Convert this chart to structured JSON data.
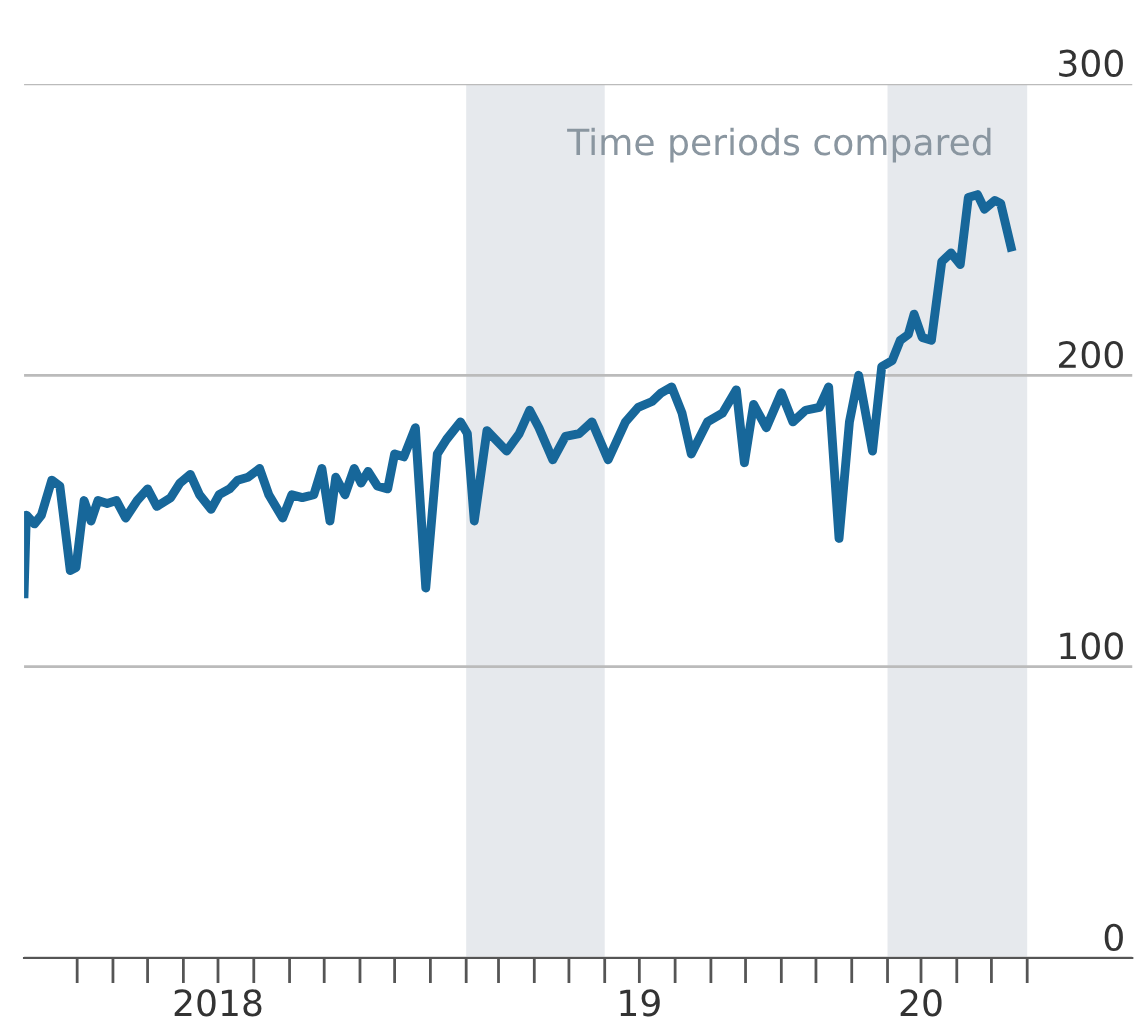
{
  "chart_data": {
    "type": "line",
    "x": [
      "2018-01-14",
      "2018-01-16",
      "2018-01-23",
      "2018-01-29",
      "2018-02-07",
      "2018-02-14",
      "2018-02-23",
      "2018-02-28",
      "2018-03-07",
      "2018-03-13",
      "2018-03-19",
      "2018-03-27",
      "2018-04-04",
      "2018-04-12",
      "2018-04-22",
      "2018-05-01",
      "2018-05-09",
      "2018-05-21",
      "2018-05-29",
      "2018-06-07",
      "2018-06-15",
      "2018-06-25",
      "2018-07-02",
      "2018-07-11",
      "2018-07-18",
      "2018-07-27",
      "2018-08-06",
      "2018-08-14",
      "2018-08-26",
      "2018-09-03",
      "2018-09-12",
      "2018-09-22",
      "2018-09-29",
      "2018-10-06",
      "2018-10-11",
      "2018-10-19",
      "2018-10-27",
      "2018-11-02",
      "2018-11-08",
      "2018-11-16",
      "2018-11-25",
      "2018-12-01",
      "2018-12-09",
      "2018-12-19",
      "2018-12-28",
      "2019-01-07",
      "2019-01-15",
      "2019-01-27",
      "2019-02-02",
      "2019-02-08",
      "2019-02-19",
      "2019-03-08",
      "2019-03-19",
      "2019-03-28",
      "2019-04-05",
      "2019-04-17",
      "2019-04-28",
      "2019-05-10",
      "2019-05-21",
      "2019-06-04",
      "2019-06-19",
      "2019-06-30",
      "2019-07-12",
      "2019-07-20",
      "2019-07-29",
      "2019-08-07",
      "2019-08-15",
      "2019-08-29",
      "2019-09-11",
      "2019-09-23",
      "2019-09-30",
      "2019-10-08",
      "2019-10-19",
      "2019-11-01",
      "2019-11-11",
      "2019-11-22",
      "2019-12-04",
      "2019-12-12",
      "2019-12-21",
      "2019-12-30",
      "2020-01-07",
      "2020-01-19",
      "2020-01-27",
      "2020-02-05",
      "2020-02-12",
      "2020-02-19",
      "2020-02-24",
      "2020-03-02",
      "2020-03-10",
      "2020-03-19",
      "2020-03-27",
      "2020-04-04",
      "2020-04-11",
      "2020-04-19",
      "2020-04-25",
      "2020-05-04",
      "2020-05-09",
      "2020-05-18"
    ],
    "series": [
      {
        "color": "#17679a",
        "values": [
          125,
          152,
          149,
          152,
          164,
          162,
          133,
          134,
          157,
          150,
          157,
          156,
          157,
          151,
          157,
          161,
          155,
          158,
          163,
          166,
          159,
          154,
          159,
          161,
          164,
          165,
          168,
          159,
          151,
          159,
          158,
          159,
          168,
          150,
          165,
          159,
          168,
          163,
          167,
          162,
          161,
          173,
          172,
          182,
          127,
          173,
          178,
          184,
          180,
          150,
          181,
          174,
          180,
          188,
          182,
          171,
          179,
          180,
          184,
          171,
          184,
          189,
          191,
          194,
          196,
          187,
          173,
          184,
          187,
          195,
          170,
          190,
          182,
          194,
          184,
          188,
          189,
          196,
          144,
          184,
          200,
          174,
          203,
          205,
          212,
          214,
          221,
          213,
          212,
          239,
          242,
          238,
          261,
          262,
          257,
          260,
          259,
          244
        ]
      }
    ],
    "xlim": [
      "2018-01-14",
      "2020-08-31"
    ],
    "xticks": [
      {
        "value": "2018-03-01",
        "label": null
      },
      {
        "value": "2018-04-01",
        "label": null
      },
      {
        "value": "2018-05-01",
        "label": null
      },
      {
        "value": "2018-06-01",
        "label": null
      },
      {
        "value": "2018-07-01",
        "label": "2018"
      },
      {
        "value": "2018-08-01",
        "label": null
      },
      {
        "value": "2018-09-01",
        "label": null
      },
      {
        "value": "2018-10-01",
        "label": null
      },
      {
        "value": "2018-11-01",
        "label": null
      },
      {
        "value": "2018-12-01",
        "label": null
      },
      {
        "value": "2019-01-01",
        "label": null
      },
      {
        "value": "2019-02-01",
        "label": null
      },
      {
        "value": "2019-03-01",
        "label": null
      },
      {
        "value": "2019-04-01",
        "label": null
      },
      {
        "value": "2019-05-01",
        "label": null
      },
      {
        "value": "2019-06-01",
        "label": null
      },
      {
        "value": "2019-07-01",
        "label": "19"
      },
      {
        "value": "2019-08-01",
        "label": null
      },
      {
        "value": "2019-09-01",
        "label": null
      },
      {
        "value": "2019-10-01",
        "label": null
      },
      {
        "value": "2019-11-01",
        "label": null
      },
      {
        "value": "2019-12-01",
        "label": null
      },
      {
        "value": "2020-01-01",
        "label": null
      },
      {
        "value": "2020-02-01",
        "label": null
      },
      {
        "value": "2020-03-01",
        "label": "20"
      },
      {
        "value": "2020-04-01",
        "label": null
      },
      {
        "value": "2020-05-01",
        "label": null
      },
      {
        "value": "2020-06-01",
        "label": null
      }
    ],
    "ylim": [
      0,
      300
    ],
    "yticks": [
      0,
      100,
      200,
      300
    ],
    "grid": "y",
    "bands": [
      {
        "axis": "x",
        "from": "2019-02-01",
        "to": "2019-06-01",
        "color": "#e6e9ed"
      },
      {
        "axis": "x",
        "from": "2020-02-01",
        "to": "2020-06-01",
        "color": "#e6e9ed"
      }
    ],
    "annotations": [
      "Time periods compared"
    ]
  }
}
